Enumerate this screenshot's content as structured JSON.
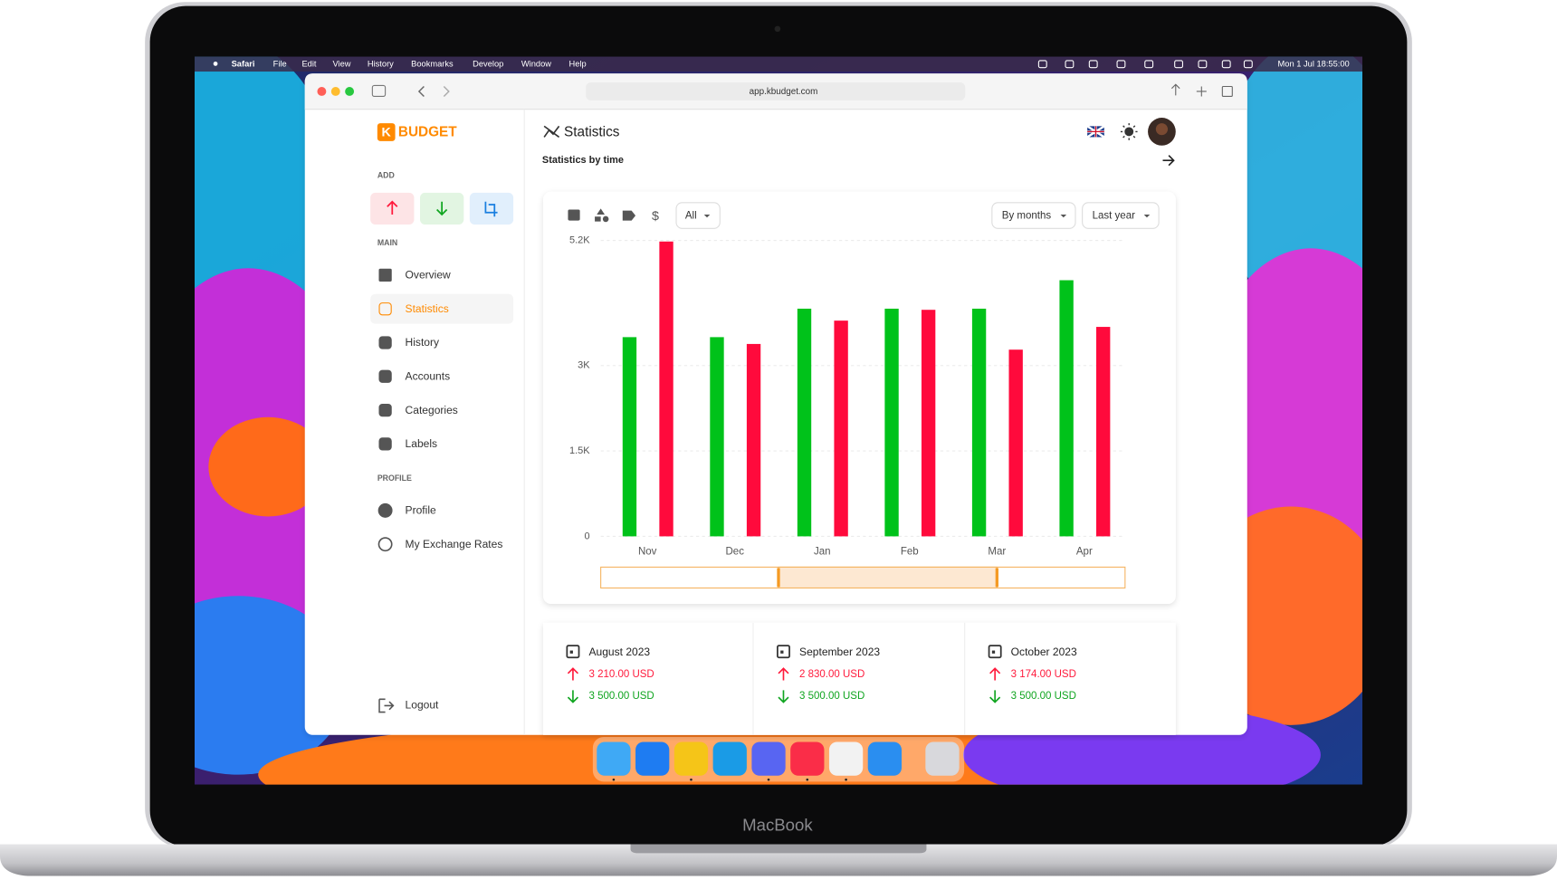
{
  "menu_bar": {
    "app": "Safari",
    "items": [
      "File",
      "Edit",
      "View",
      "History",
      "Bookmarks",
      "Develop",
      "Window",
      "Help"
    ],
    "clock": "Mon 1 Jul  18:55:00"
  },
  "browser": {
    "url": "app.kbudget.com"
  },
  "sidebar": {
    "logo": {
      "icon": "K",
      "text": "BUDGET"
    },
    "add_label": "ADD",
    "main_label": "MAIN",
    "main": [
      "Overview",
      "Statistics",
      "History",
      "Accounts",
      "Categories",
      "Labels"
    ],
    "profile_label": "PROFILE",
    "profile": [
      "Profile",
      "My Exchange Rates"
    ],
    "logout": "Logout"
  },
  "header": {
    "title": "Statistics",
    "subtitle": "Statistics by time"
  },
  "filters": {
    "all": "All",
    "period": "By months",
    "range": "Last year"
  },
  "chart_data": {
    "type": "bar",
    "categories": [
      "Nov",
      "Dec",
      "Jan",
      "Feb",
      "Mar",
      "Apr"
    ],
    "series": [
      {
        "color": "#00c21a",
        "values": [
          3500,
          3500,
          4000,
          4000,
          4000,
          4500
        ]
      },
      {
        "color": "#ff0a3c",
        "values": [
          5180,
          3380,
          3790,
          3980,
          3280,
          3680
        ]
      }
    ],
    "ylim": [
      0,
      5200
    ],
    "yticks": [
      0,
      {
        "value": 1500,
        "label": "1.5K"
      },
      {
        "value": 3000,
        "label": "3K"
      },
      {
        "value": 5200,
        "label": "5.2K"
      }
    ],
    "grid": true
  },
  "cards": [
    {
      "month": "August 2023",
      "expense": "3 210.00 USD",
      "income": "3 500.00 USD"
    },
    {
      "month": "September 2023",
      "expense": "2 830.00 USD",
      "income": "3 500.00 USD"
    },
    {
      "month": "October 2023",
      "expense": "3 174.00 USD",
      "income": "3 500.00 USD"
    }
  ],
  "device": {
    "label": "MacBook"
  }
}
